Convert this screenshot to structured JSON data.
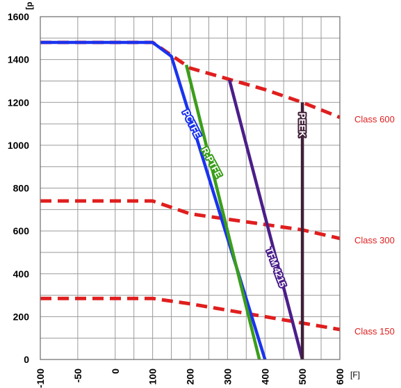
{
  "chart_data": {
    "type": "line",
    "xlabel": "",
    "x_unit": "[F]",
    "ylabel": "",
    "y_unit": "[p",
    "xlim": [
      -100,
      600
    ],
    "ylim": [
      0,
      1600
    ],
    "x_ticks": [
      -100,
      -50,
      0,
      100,
      200,
      300,
      400,
      500,
      600
    ],
    "x_tick_labels": [
      "-100",
      "-50",
      "0",
      "100",
      "200",
      "300",
      "400",
      "500",
      "600"
    ],
    "y_ticks": [
      0,
      200,
      400,
      600,
      800,
      1000,
      1200,
      1400,
      1600
    ],
    "y_tick_labels": [
      "0",
      "200",
      "400",
      "600",
      "800",
      "1000",
      "1200",
      "1400",
      "1600"
    ],
    "x_grid": [
      -100,
      -50,
      0,
      50,
      100,
      150,
      200,
      250,
      300,
      350,
      400,
      450,
      500,
      550,
      600
    ],
    "y_grid": [
      0,
      100,
      200,
      300,
      400,
      500,
      600,
      700,
      800,
      900,
      1000,
      1100,
      1200,
      1300,
      1400,
      1500,
      1600
    ],
    "grid": true,
    "pressure_classes": [
      {
        "name": "Class 600",
        "color": "#e01e1e",
        "dashed": true,
        "points": [
          [
            -100,
            1480
          ],
          [
            100,
            1480
          ],
          [
            200,
            1360
          ],
          [
            300,
            1310
          ],
          [
            400,
            1260
          ],
          [
            500,
            1200
          ],
          [
            600,
            1130
          ]
        ]
      },
      {
        "name": "Class 300",
        "color": "#e01e1e",
        "dashed": true,
        "points": [
          [
            -100,
            740
          ],
          [
            100,
            740
          ],
          [
            200,
            680
          ],
          [
            300,
            655
          ],
          [
            400,
            630
          ],
          [
            500,
            605
          ],
          [
            600,
            565
          ]
        ]
      },
      {
        "name": "Class 150",
        "color": "#e01e1e",
        "dashed": true,
        "points": [
          [
            -100,
            285
          ],
          [
            100,
            285
          ],
          [
            200,
            260
          ],
          [
            300,
            230
          ],
          [
            400,
            200
          ],
          [
            500,
            170
          ],
          [
            600,
            140
          ]
        ]
      }
    ],
    "series": [
      {
        "name": "PCTFE",
        "color": "#1a33ee",
        "points": [
          [
            -100,
            1480
          ],
          [
            100,
            1480
          ],
          [
            150,
            1415
          ],
          [
            400,
            0
          ]
        ],
        "label_at": [
          205,
          1100
        ],
        "label_angle": 63
      },
      {
        "name": "R-PTFE",
        "color": "#3a9e1a",
        "points": [
          [
            190,
            1375
          ],
          [
            385,
            0
          ]
        ],
        "label_at": [
          258,
          920
        ],
        "label_angle": 62
      },
      {
        "name": "TFM 4215",
        "color": "#4b1e8a",
        "points": [
          [
            305,
            1305
          ],
          [
            500,
            0
          ]
        ],
        "label_at": [
          430,
          430
        ],
        "label_angle": 70
      },
      {
        "name": "PEEK",
        "color": "#402038",
        "points": [
          [
            500,
            1200
          ],
          [
            500,
            0
          ]
        ],
        "label_at": [
          500,
          1095
        ],
        "label_angle": 90
      }
    ]
  }
}
